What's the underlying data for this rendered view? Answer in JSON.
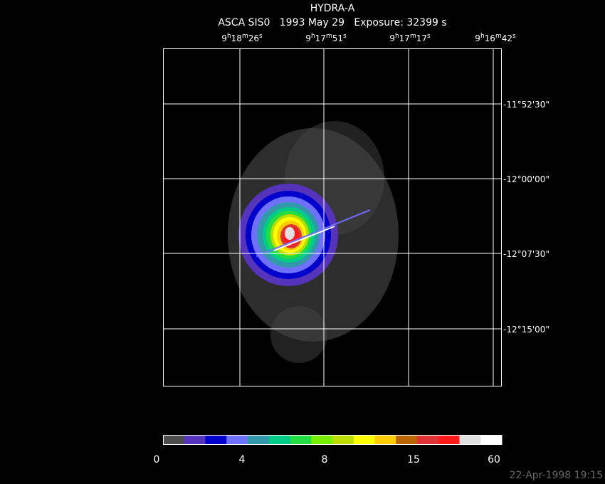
{
  "header": {
    "title": "HYDRA-A",
    "subtitle": "ASCA SIS0   1993 May 29   Exposure: 32399 s"
  },
  "ra_labels": [
    [
      "9",
      "h",
      "18",
      "m",
      "26",
      "s"
    ],
    [
      "9",
      "h",
      "17",
      "m",
      "51",
      "s"
    ],
    [
      "9",
      "h",
      "17",
      "m",
      "17",
      "s"
    ],
    [
      "9",
      "h",
      "16",
      "m",
      "42",
      "s"
    ]
  ],
  "dec_labels": [
    "-11°52'30\"",
    "-12°00'00\"",
    "-12°07'30\"",
    "-12°15'00\""
  ],
  "colorbar": {
    "colors": [
      "#4d4d4d",
      "#5533bb",
      "#0000cc",
      "#7070ff",
      "#3399aa",
      "#00cc88",
      "#22dd44",
      "#77ee00",
      "#bbdd00",
      "#ffff00",
      "#ffcc00",
      "#bb6600",
      "#dd3333",
      "#ff1a1a",
      "#e0e0e0",
      "#ffffff"
    ],
    "labels": [
      "0",
      "4",
      "8",
      "15",
      "60"
    ]
  },
  "footer": "22-Apr-1998 19:15"
}
